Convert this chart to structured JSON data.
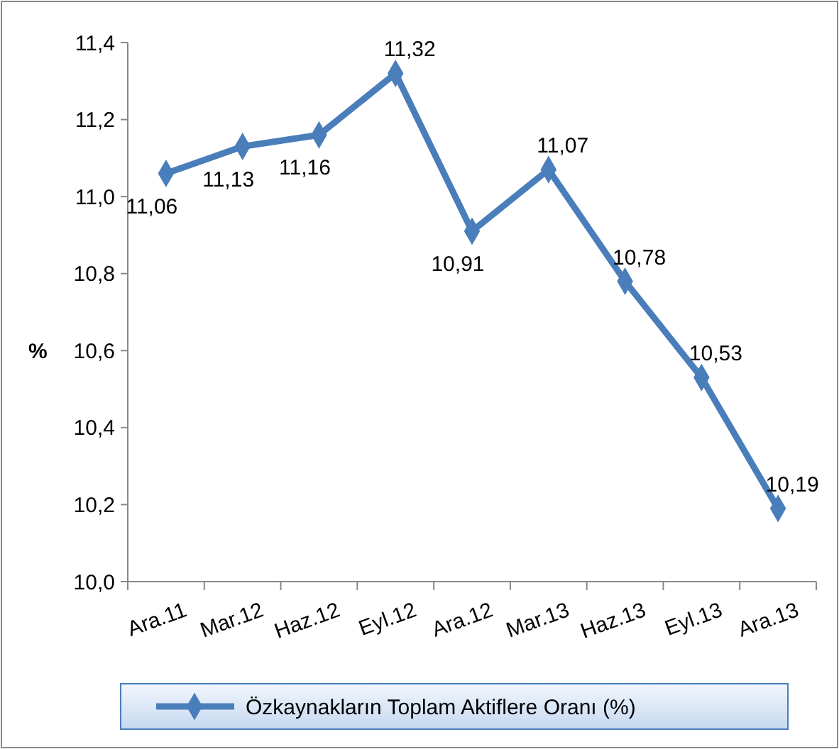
{
  "chart_data": {
    "type": "line",
    "ylabel": "%",
    "categories": [
      "Ara.11",
      "Mar.12",
      "Haz.12",
      "Eyl.12",
      "Ara.12",
      "Mar.13",
      "Haz.13",
      "Eyl.13",
      "Ara.13"
    ],
    "series": [
      {
        "name": "Özkaynakların Toplam Aktiflere Oranı (%)",
        "color": "#4a7ebb",
        "values": [
          11.06,
          11.13,
          11.16,
          11.32,
          10.91,
          11.07,
          10.78,
          10.53,
          10.19
        ],
        "value_labels": [
          "11,06",
          "11,13",
          "11,16",
          "11,32",
          "10,91",
          "11,07",
          "10,78",
          "10,53",
          "10,19"
        ]
      }
    ],
    "ylim": [
      10.0,
      11.4
    ],
    "yticks": [
      {
        "value": 10.0,
        "label": "10,0"
      },
      {
        "value": 10.2,
        "label": "10,2"
      },
      {
        "value": 10.4,
        "label": "10,4"
      },
      {
        "value": 10.6,
        "label": "10,6"
      },
      {
        "value": 10.8,
        "label": "10,8"
      },
      {
        "value": 11.0,
        "label": "11,0"
      },
      {
        "value": 11.2,
        "label": "11,2"
      },
      {
        "value": 11.4,
        "label": "11,4"
      }
    ],
    "legend": "bottom",
    "marker": "diamond",
    "line_style": "solid"
  }
}
